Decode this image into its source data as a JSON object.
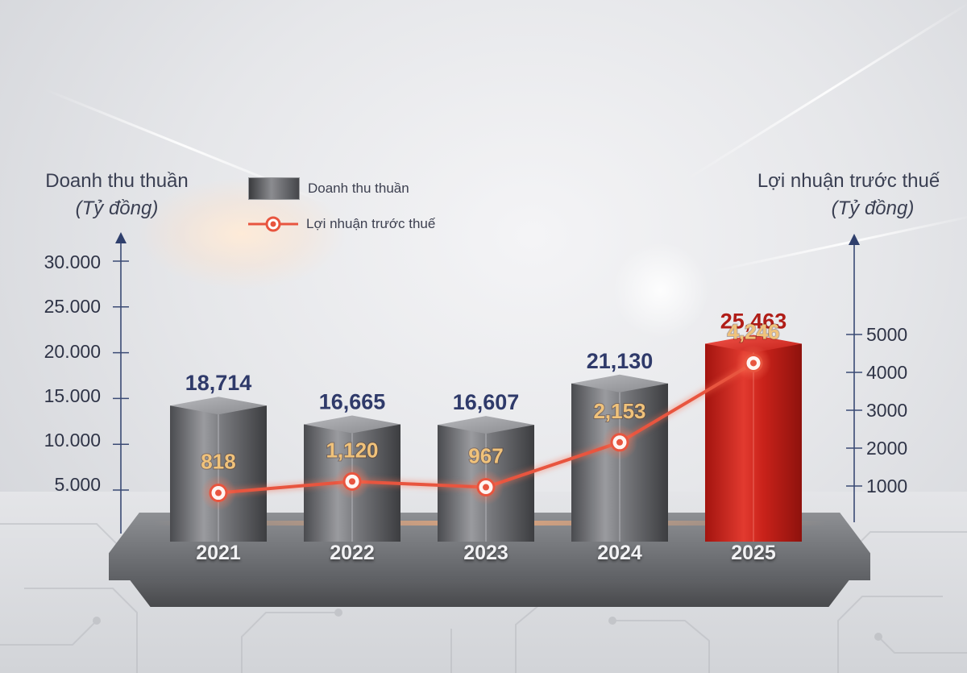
{
  "chart_data": {
    "type": "bar",
    "categories": [
      "2021",
      "2022",
      "2023",
      "2024",
      "2025"
    ],
    "series": [
      {
        "name": "Doanh thu thuần",
        "type": "bar",
        "axis": "left",
        "values": [
          18714,
          16665,
          16607,
          21130,
          25463
        ],
        "labels": [
          "18,714",
          "16,665",
          "16,607",
          "21,130",
          "25,463"
        ]
      },
      {
        "name": "Lợi nhuận trước thuế",
        "type": "line",
        "axis": "right",
        "values": [
          818,
          1120,
          967,
          2153,
          4246
        ],
        "labels": [
          "818",
          "1,120",
          "967",
          "2,153",
          "4,246"
        ]
      }
    ],
    "left_axis": {
      "title": "Doanh thu thuần",
      "unit": "(Tỷ đồng)",
      "ticks": [
        "5.000",
        "10.000",
        "15.000",
        "20.000",
        "25.000",
        "30.000"
      ],
      "tick_values": [
        5000,
        10000,
        15000,
        20000,
        25000,
        30000
      ],
      "ylim": [
        0,
        30000
      ]
    },
    "right_axis": {
      "title": "Lợi nhuận trước thuế",
      "unit": "(Tỷ đồng)",
      "ticks": [
        "1000",
        "2000",
        "3000",
        "4000",
        "5000"
      ],
      "tick_values": [
        1000,
        2000,
        3000,
        4000,
        5000
      ],
      "ylim": [
        0,
        5000
      ]
    },
    "legend": [
      "Doanh thu thuần",
      "Lợi nhuận trước thuế"
    ],
    "legend_position": "top-left",
    "colors": {
      "bar": "#6b6c70",
      "bar_highlight": "#d42a22",
      "line": "#e8553f",
      "bar_label": "#2f3a6a",
      "bar_label_highlight": "#b01d17",
      "line_label": "#f0c27a"
    }
  }
}
